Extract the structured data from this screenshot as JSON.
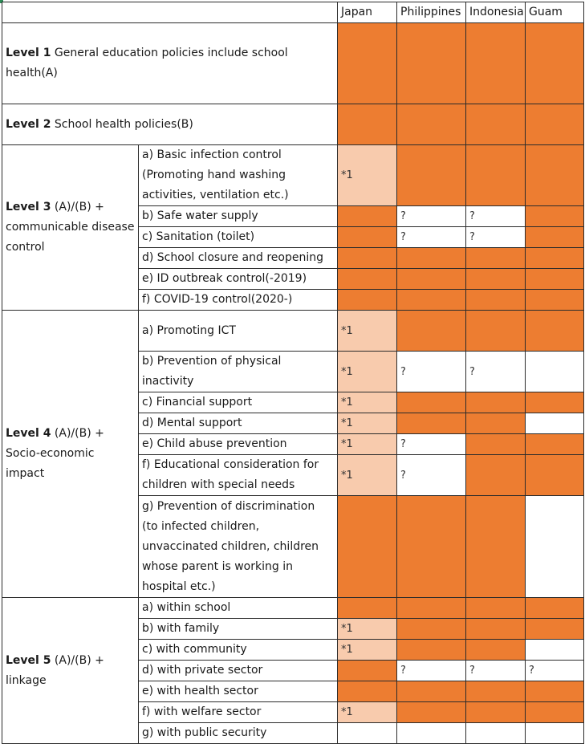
{
  "colors": {
    "full": "#ED7D31",
    "partial": "#F8CBAD",
    "none": "#ffffff"
  },
  "header": {
    "countries": [
      "Japan",
      "Philippines",
      "Indonesia",
      "Guam"
    ]
  },
  "levels": {
    "l1": {
      "bold": "Level 1",
      "rest": " General education policies include school health(A)"
    },
    "l2": {
      "bold": "Level 2",
      "rest": " School health policies(B)"
    },
    "l3": {
      "bold": "Level 3",
      "rest": " (A)/(B) + communicable disease control"
    },
    "l4": {
      "bold": "Level 4",
      "rest": " (A)/(B) + Socio-economic impact"
    },
    "l5": {
      "bold": "Level 5",
      "rest": " (A)/(B) + linkage"
    }
  },
  "items": {
    "l3a": "a) Basic infection control (Promoting hand washing activities, ventilation etc.)",
    "l3b": "b) Safe water supply",
    "l3c": "c) Sanitation (toilet)",
    "l3d": "d) School closure and reopening",
    "l3e": "e) ID outbreak control(-2019)",
    "l3f": "f) COVID-19 control(2020-)",
    "l4a": "a) Promoting ICT",
    "l4b": "b) Prevention of physical inactivity",
    "l4c": "c) Financial support",
    "l4d": "d) Mental support",
    "l4e": "e) Child abuse prevention",
    "l4f": "f) Educational consideration for children with special needs",
    "l4g": "g) Prevention of discrimination (to infected children, unvaccinated children, children whose parent is working in hospital etc.)",
    "l5a": "a) within school",
    "l5b": "b) with family",
    "l5c": "c) with community",
    "l5d": "d) with private sector",
    "l5e": "e) with health sector",
    "l5f": "f) with welfare sector",
    "l5g": "g) with public security"
  },
  "marks": {
    "note": "*1",
    "unknown": "?"
  }
}
